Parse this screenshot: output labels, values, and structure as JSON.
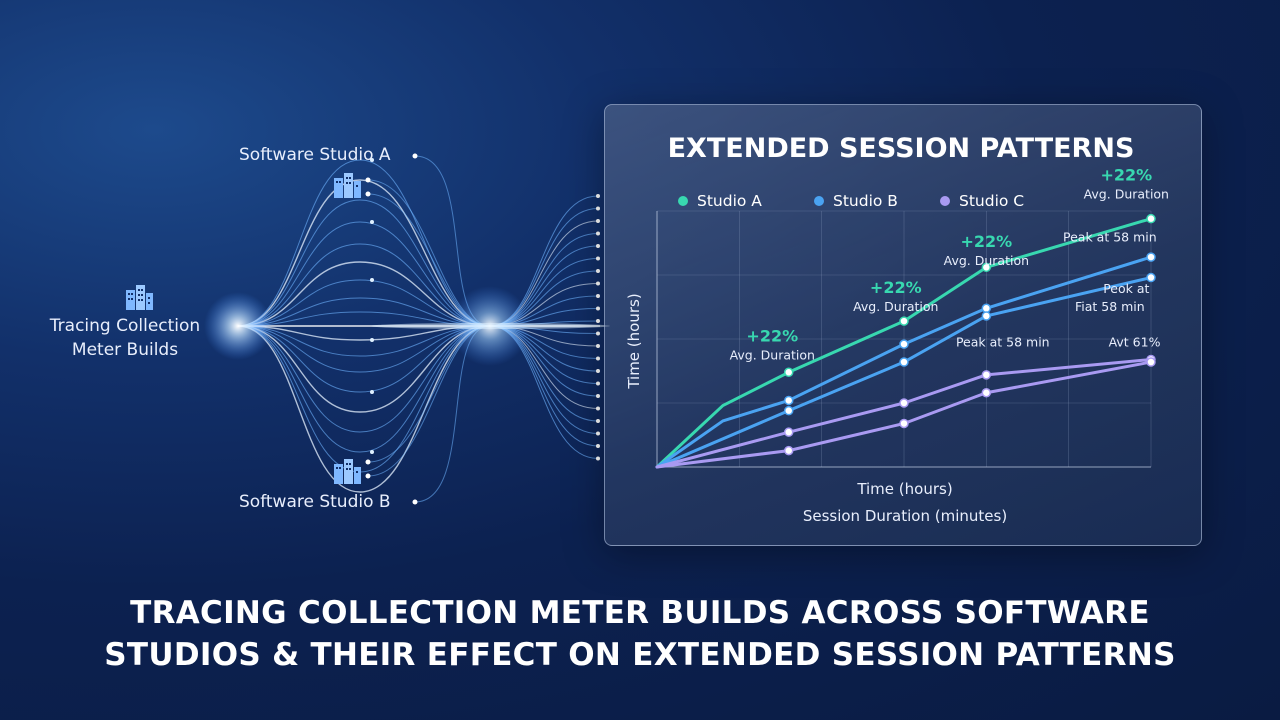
{
  "sources": {
    "studio_a": "Software Studio A",
    "studio_b": "Software Studio B",
    "origin_line1": "Tracing Collection",
    "origin_line2": "Meter Builds"
  },
  "icons": {
    "origin": "building-icon",
    "studio_a": "building-icon",
    "studio_b": "building-icon"
  },
  "headline": {
    "line1": "TRACING COLLECTION METER BUILDS ACROSS SOFTWARE",
    "line2": "STUDIOS & THEIR EFFECT ON EXTENDED SESSION PATTERNS"
  },
  "colors": {
    "studio_a": "#38d8b0",
    "studio_b": "#4aa3f2",
    "studio_c": "#a99af2",
    "flow": "#6fb4ff"
  },
  "chart_data": {
    "type": "line",
    "title": "EXTENDED SESSION PATTERNS",
    "xlabel": "Time (hours)",
    "xlabel2": "Session Duration (minutes)",
    "ylabel": "Time (hours)",
    "legend_position": "top",
    "grid": true,
    "xlim": [
      0,
      6
    ],
    "ylim": [
      0,
      5
    ],
    "series": [
      {
        "name": "Studio A",
        "color": "#38d8b0",
        "x": [
          0,
          0.8,
          1.6,
          3.0,
          4.0,
          6.0
        ],
        "y": [
          0,
          1.2,
          1.85,
          2.85,
          3.9,
          4.85
        ],
        "markers": [
          2,
          3,
          4,
          5
        ]
      },
      {
        "name": "Studio B",
        "color": "#4aa3f2",
        "x": [
          0,
          0.8,
          1.6,
          3.0,
          4.0,
          6.0
        ],
        "y": [
          0,
          0.9,
          1.3,
          2.4,
          3.1,
          4.1
        ],
        "markers": [
          2,
          3,
          4,
          5
        ]
      },
      {
        "name": "",
        "color": "#4aa3f2",
        "x": [
          0,
          1.6,
          3.0,
          4.0,
          6.0
        ],
        "y": [
          0,
          1.1,
          2.05,
          2.95,
          3.7
        ],
        "markers": [
          1,
          2,
          3,
          4
        ]
      },
      {
        "name": "Studio C",
        "color": "#a99af2",
        "x": [
          0,
          1.6,
          3.0,
          4.0,
          6.0
        ],
        "y": [
          0,
          0.68,
          1.25,
          1.8,
          2.1
        ],
        "markers": [
          1,
          2,
          3,
          4
        ]
      },
      {
        "name": "",
        "color": "#a99af2",
        "x": [
          0,
          1.6,
          3.0,
          4.0,
          6.0
        ],
        "y": [
          0,
          0.32,
          0.85,
          1.45,
          2.05
        ],
        "markers": [
          1,
          2,
          3,
          4
        ]
      }
    ],
    "annotations": [
      {
        "pct": "+22%",
        "text": "Avg. Duration",
        "x": 1.4,
        "y": 2.45
      },
      {
        "pct": "+22%",
        "text": "Avg. Duration",
        "x": 2.9,
        "y": 3.4
      },
      {
        "pct": "+22%",
        "text": "Avg. Duration",
        "x": 4.0,
        "y": 4.3
      },
      {
        "pct": "+22%",
        "text": "Avg. Duration",
        "x": 5.7,
        "y": 5.6
      },
      {
        "pct": "",
        "text": "Peak at 58 min",
        "x": 5.5,
        "y": 4.4
      },
      {
        "pct": "",
        "text": "Peok at",
        "x": 5.7,
        "y": 3.4
      },
      {
        "pct": "",
        "text": "Fiat 58 min",
        "x": 5.5,
        "y": 3.05
      },
      {
        "pct": "",
        "text": "Peak at 58 min",
        "x": 4.2,
        "y": 2.35
      },
      {
        "pct": "",
        "text": "Avt 61%",
        "x": 5.8,
        "y": 2.35
      }
    ]
  }
}
